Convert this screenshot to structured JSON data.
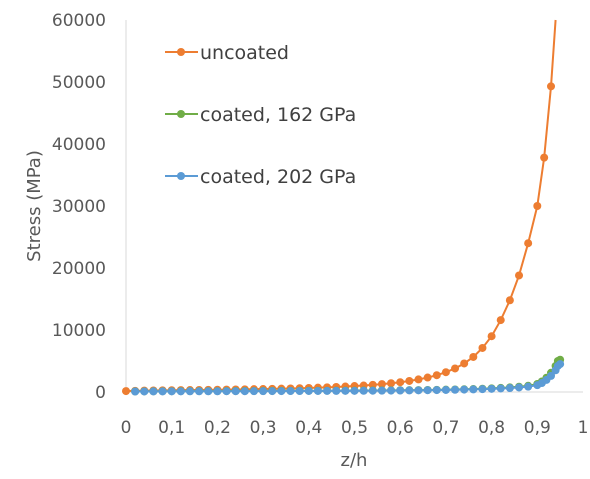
{
  "chart_data": {
    "type": "scatter",
    "title": "",
    "xlabel": "z/h",
    "ylabel": "Stress (MPa)",
    "xlim": [
      0,
      1
    ],
    "ylim": [
      0,
      60000
    ],
    "x_ticks": [
      "0",
      "0,1",
      "0,2",
      "0,3",
      "0,4",
      "0,5",
      "0,6",
      "0,7",
      "0,8",
      "0,9",
      "1"
    ],
    "y_ticks": [
      "0",
      "10000",
      "20000",
      "30000",
      "40000",
      "50000",
      "60000"
    ],
    "grid": false,
    "legend_position": "top-left",
    "series": [
      {
        "name": "uncoated",
        "color": "#ED7D31",
        "points": [
          [
            0,
            150
          ],
          [
            0.02,
            190
          ],
          [
            0.04,
            220
          ],
          [
            0.06,
            240
          ],
          [
            0.08,
            260
          ],
          [
            0.1,
            280
          ],
          [
            0.12,
            300
          ],
          [
            0.14,
            320
          ],
          [
            0.16,
            330
          ],
          [
            0.18,
            350
          ],
          [
            0.2,
            370
          ],
          [
            0.22,
            390
          ],
          [
            0.24,
            410
          ],
          [
            0.26,
            430
          ],
          [
            0.28,
            460
          ],
          [
            0.3,
            480
          ],
          [
            0.32,
            510
          ],
          [
            0.34,
            540
          ],
          [
            0.36,
            570
          ],
          [
            0.38,
            610
          ],
          [
            0.4,
            650
          ],
          [
            0.42,
            700
          ],
          [
            0.44,
            750
          ],
          [
            0.46,
            810
          ],
          [
            0.48,
            880
          ],
          [
            0.5,
            960
          ],
          [
            0.52,
            1040
          ],
          [
            0.54,
            1150
          ],
          [
            0.56,
            1270
          ],
          [
            0.58,
            1410
          ],
          [
            0.6,
            1580
          ],
          [
            0.62,
            1780
          ],
          [
            0.64,
            2030
          ],
          [
            0.66,
            2330
          ],
          [
            0.68,
            2710
          ],
          [
            0.7,
            3190
          ],
          [
            0.72,
            3800
          ],
          [
            0.74,
            4600
          ],
          [
            0.76,
            5650
          ],
          [
            0.78,
            7100
          ],
          [
            0.8,
            9000
          ],
          [
            0.82,
            11600
          ],
          [
            0.84,
            14800
          ],
          [
            0.86,
            18800
          ],
          [
            0.88,
            24000
          ],
          [
            0.9,
            30000
          ],
          [
            0.915,
            37800
          ],
          [
            0.93,
            49300
          ]
        ]
      },
      {
        "name": "coated, 162 GPa",
        "color": "#70AD47",
        "points": [
          [
            0.02,
            100
          ],
          [
            0.04,
            110
          ],
          [
            0.06,
            120
          ],
          [
            0.08,
            125
          ],
          [
            0.1,
            130
          ],
          [
            0.12,
            135
          ],
          [
            0.14,
            140
          ],
          [
            0.16,
            145
          ],
          [
            0.18,
            150
          ],
          [
            0.2,
            150
          ],
          [
            0.22,
            155
          ],
          [
            0.24,
            160
          ],
          [
            0.26,
            165
          ],
          [
            0.28,
            170
          ],
          [
            0.3,
            175
          ],
          [
            0.32,
            180
          ],
          [
            0.34,
            185
          ],
          [
            0.36,
            190
          ],
          [
            0.38,
            195
          ],
          [
            0.4,
            200
          ],
          [
            0.42,
            205
          ],
          [
            0.44,
            210
          ],
          [
            0.46,
            215
          ],
          [
            0.48,
            220
          ],
          [
            0.5,
            230
          ],
          [
            0.52,
            240
          ],
          [
            0.54,
            250
          ],
          [
            0.56,
            260
          ],
          [
            0.58,
            270
          ],
          [
            0.6,
            280
          ],
          [
            0.62,
            295
          ],
          [
            0.64,
            310
          ],
          [
            0.66,
            330
          ],
          [
            0.68,
            350
          ],
          [
            0.7,
            380
          ],
          [
            0.72,
            410
          ],
          [
            0.74,
            440
          ],
          [
            0.76,
            480
          ],
          [
            0.78,
            530
          ],
          [
            0.8,
            590
          ],
          [
            0.82,
            660
          ],
          [
            0.84,
            740
          ],
          [
            0.86,
            850
          ],
          [
            0.88,
            1000
          ],
          [
            0.9,
            1300
          ],
          [
            0.91,
            1700
          ],
          [
            0.92,
            2300
          ],
          [
            0.93,
            3100
          ],
          [
            0.94,
            4200
          ],
          [
            0.945,
            5000
          ],
          [
            0.95,
            5200
          ]
        ]
      },
      {
        "name": "coated, 202 GPa",
        "color": "#5B9BD5",
        "points": [
          [
            0.02,
            80
          ],
          [
            0.04,
            90
          ],
          [
            0.06,
            95
          ],
          [
            0.08,
            100
          ],
          [
            0.1,
            105
          ],
          [
            0.12,
            110
          ],
          [
            0.14,
            115
          ],
          [
            0.16,
            118
          ],
          [
            0.18,
            120
          ],
          [
            0.2,
            122
          ],
          [
            0.22,
            125
          ],
          [
            0.24,
            128
          ],
          [
            0.26,
            130
          ],
          [
            0.28,
            135
          ],
          [
            0.3,
            140
          ],
          [
            0.32,
            145
          ],
          [
            0.34,
            150
          ],
          [
            0.36,
            155
          ],
          [
            0.38,
            160
          ],
          [
            0.4,
            165
          ],
          [
            0.42,
            170
          ],
          [
            0.44,
            175
          ],
          [
            0.46,
            180
          ],
          [
            0.48,
            185
          ],
          [
            0.5,
            190
          ],
          [
            0.52,
            200
          ],
          [
            0.54,
            210
          ],
          [
            0.56,
            220
          ],
          [
            0.58,
            230
          ],
          [
            0.6,
            240
          ],
          [
            0.62,
            255
          ],
          [
            0.64,
            270
          ],
          [
            0.66,
            290
          ],
          [
            0.68,
            310
          ],
          [
            0.7,
            330
          ],
          [
            0.72,
            360
          ],
          [
            0.74,
            390
          ],
          [
            0.76,
            420
          ],
          [
            0.78,
            460
          ],
          [
            0.8,
            510
          ],
          [
            0.82,
            570
          ],
          [
            0.84,
            640
          ],
          [
            0.86,
            730
          ],
          [
            0.88,
            860
          ],
          [
            0.9,
            1100
          ],
          [
            0.91,
            1450
          ],
          [
            0.92,
            1950
          ],
          [
            0.93,
            2600
          ],
          [
            0.94,
            3500
          ],
          [
            0.945,
            4200
          ],
          [
            0.95,
            4500
          ]
        ]
      }
    ]
  }
}
